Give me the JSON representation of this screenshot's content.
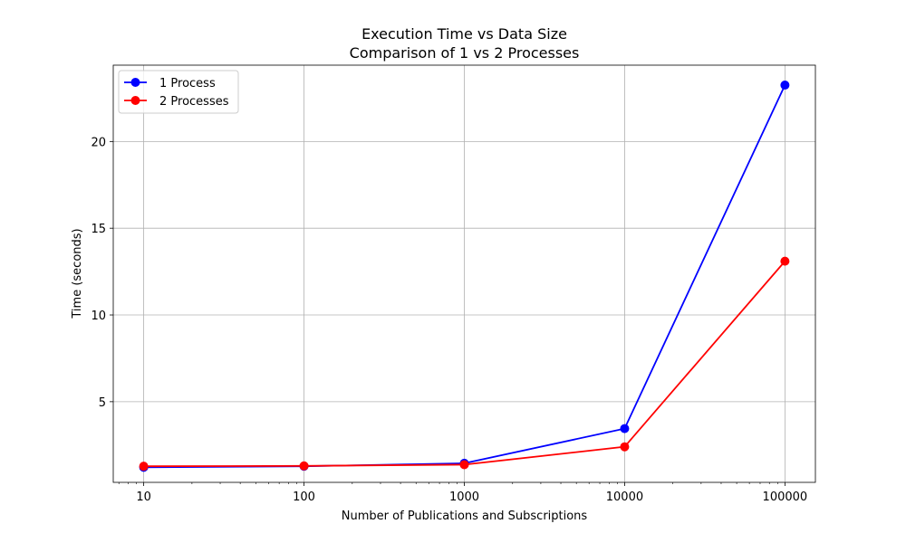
{
  "chart_data": {
    "type": "line",
    "title": "Execution Time vs Data Size",
    "subtitle": "Comparison of 1 vs 2 Processes",
    "xlabel": "Number of Publications and Subscriptions",
    "ylabel": "Time (seconds)",
    "x_scale": "log",
    "x": [
      10,
      100,
      1000,
      10000,
      100000
    ],
    "x_tick_labels": [
      "10",
      "100",
      "1000",
      "10000",
      "100000"
    ],
    "y_ticks": [
      5,
      10,
      15,
      20
    ],
    "y_tick_labels": [
      "5",
      "10",
      "15",
      "20"
    ],
    "ylim": [
      0.35,
      24.4
    ],
    "grid": true,
    "legend_position": "top-left",
    "series": [
      {
        "name": "1 Process",
        "color": "#0000ff",
        "values": [
          1.22,
          1.28,
          1.45,
          3.45,
          23.25
        ]
      },
      {
        "name": "2 Processes",
        "color": "#ff0000",
        "values": [
          1.28,
          1.3,
          1.37,
          2.4,
          13.1
        ]
      }
    ]
  }
}
